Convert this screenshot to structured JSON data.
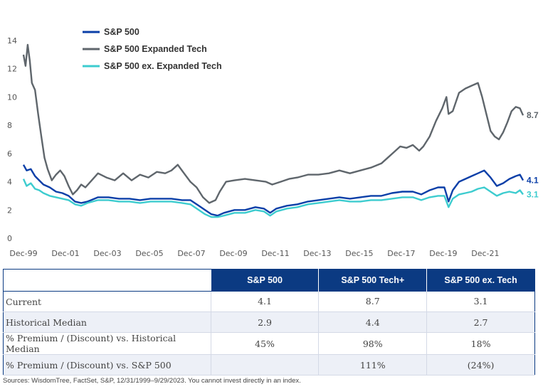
{
  "chart_data": {
    "type": "line",
    "title": "",
    "xlabel": "",
    "ylabel": "",
    "ylim": [
      0,
      14
    ],
    "yticks": [
      0,
      2,
      4,
      6,
      8,
      10,
      12,
      14
    ],
    "x_tick_labels": [
      "Dec-99",
      "Dec-01",
      "Dec-03",
      "Dec-05",
      "Dec-07",
      "Dec-09",
      "Dec-11",
      "Dec-13",
      "Dec-15",
      "Dec-17",
      "Dec-19",
      "Dec-21"
    ],
    "x_tick_years": [
      1999.95,
      2001.95,
      2003.95,
      2005.95,
      2007.95,
      2009.95,
      2011.95,
      2013.95,
      2015.95,
      2017.95,
      2019.95,
      2021.95
    ],
    "xlim": [
      1999.95,
      2023.75
    ],
    "legend": [
      "S&P 500",
      "S&P 500 Expanded Tech",
      "S&P 500 ex. Expanded Tech"
    ],
    "series": [
      {
        "name": "S&P 500",
        "color": "#0b3fa8",
        "end_label": "4.1",
        "x": [
          1999.95,
          2000.1,
          2000.3,
          2000.5,
          2000.7,
          2000.9,
          2001.2,
          2001.5,
          2001.8,
          2002.1,
          2002.4,
          2002.7,
          2003.0,
          2003.5,
          2004.0,
          2004.5,
          2005.0,
          2005.5,
          2006.0,
          2006.5,
          2007.0,
          2007.5,
          2007.9,
          2008.3,
          2008.6,
          2008.9,
          2009.2,
          2009.5,
          2010.0,
          2010.5,
          2011.0,
          2011.4,
          2011.7,
          2012.0,
          2012.5,
          2013.0,
          2013.5,
          2014.0,
          2014.5,
          2015.0,
          2015.5,
          2016.0,
          2016.5,
          2017.0,
          2017.5,
          2018.0,
          2018.5,
          2018.9,
          2019.3,
          2019.7,
          2020.0,
          2020.2,
          2020.4,
          2020.7,
          2021.0,
          2021.3,
          2021.6,
          2021.9,
          2022.2,
          2022.5,
          2022.8,
          2023.1,
          2023.4,
          2023.6,
          2023.75
        ],
        "values": [
          5.2,
          4.8,
          4.9,
          4.4,
          4.1,
          3.8,
          3.6,
          3.3,
          3.2,
          3.0,
          2.6,
          2.5,
          2.6,
          2.9,
          2.9,
          2.8,
          2.8,
          2.7,
          2.8,
          2.8,
          2.8,
          2.7,
          2.7,
          2.3,
          2.0,
          1.7,
          1.6,
          1.8,
          2.0,
          2.0,
          2.2,
          2.1,
          1.8,
          2.1,
          2.3,
          2.4,
          2.6,
          2.7,
          2.8,
          2.9,
          2.8,
          2.9,
          3.0,
          3.0,
          3.2,
          3.3,
          3.3,
          3.1,
          3.4,
          3.6,
          3.6,
          2.6,
          3.4,
          4.0,
          4.2,
          4.4,
          4.6,
          4.8,
          4.3,
          3.7,
          3.9,
          4.2,
          4.4,
          4.5,
          4.1
        ]
      },
      {
        "name": "S&P 500 Expanded Tech",
        "color": "#5f666c",
        "end_label": "8.7",
        "x": [
          1999.95,
          2000.05,
          2000.15,
          2000.25,
          2000.35,
          2000.5,
          2000.65,
          2000.8,
          2000.95,
          2001.1,
          2001.3,
          2001.5,
          2001.7,
          2001.9,
          2002.1,
          2002.3,
          2002.5,
          2002.7,
          2002.9,
          2003.2,
          2003.5,
          2003.9,
          2004.3,
          2004.7,
          2005.1,
          2005.5,
          2005.9,
          2006.3,
          2006.7,
          2007.0,
          2007.3,
          2007.6,
          2007.9,
          2008.2,
          2008.5,
          2008.8,
          2009.1,
          2009.3,
          2009.6,
          2010.0,
          2010.5,
          2011.0,
          2011.5,
          2011.8,
          2012.2,
          2012.6,
          2013.0,
          2013.5,
          2014.0,
          2014.5,
          2015.0,
          2015.5,
          2016.0,
          2016.5,
          2017.0,
          2017.3,
          2017.6,
          2017.9,
          2018.2,
          2018.5,
          2018.8,
          2019.0,
          2019.3,
          2019.6,
          2019.9,
          2020.1,
          2020.2,
          2020.4,
          2020.7,
          2021.0,
          2021.3,
          2021.6,
          2021.8,
          2022.0,
          2022.2,
          2022.4,
          2022.6,
          2022.8,
          2023.0,
          2023.2,
          2023.4,
          2023.6,
          2023.75
        ],
        "values": [
          13.0,
          12.2,
          13.7,
          12.6,
          11.0,
          10.5,
          8.8,
          7.2,
          5.7,
          4.9,
          4.1,
          4.5,
          4.8,
          4.4,
          3.7,
          3.1,
          3.4,
          3.8,
          3.6,
          4.1,
          4.6,
          4.3,
          4.1,
          4.6,
          4.1,
          4.5,
          4.3,
          4.7,
          4.6,
          4.8,
          5.2,
          4.6,
          4.0,
          3.6,
          2.9,
          2.5,
          2.7,
          3.3,
          4.0,
          4.1,
          4.2,
          4.1,
          4.0,
          3.8,
          4.0,
          4.2,
          4.3,
          4.5,
          4.5,
          4.6,
          4.8,
          4.6,
          4.8,
          5.0,
          5.3,
          5.7,
          6.1,
          6.5,
          6.4,
          6.6,
          6.2,
          6.5,
          7.2,
          8.3,
          9.2,
          10.0,
          8.8,
          9.0,
          10.3,
          10.6,
          10.8,
          11.0,
          10.0,
          8.8,
          7.6,
          7.2,
          7.0,
          7.5,
          8.2,
          9.0,
          9.3,
          9.2,
          8.7
        ]
      },
      {
        "name": "S&P 500 ex. Expanded Tech",
        "color": "#3dcccf",
        "end_label": "3.1",
        "x": [
          1999.95,
          2000.1,
          2000.3,
          2000.5,
          2000.7,
          2000.9,
          2001.2,
          2001.5,
          2001.8,
          2002.1,
          2002.4,
          2002.7,
          2003.0,
          2003.5,
          2004.0,
          2004.5,
          2005.0,
          2005.5,
          2006.0,
          2006.5,
          2007.0,
          2007.5,
          2007.9,
          2008.3,
          2008.6,
          2008.9,
          2009.2,
          2009.5,
          2010.0,
          2010.5,
          2011.0,
          2011.4,
          2011.7,
          2012.0,
          2012.5,
          2013.0,
          2013.5,
          2014.0,
          2014.5,
          2015.0,
          2015.5,
          2016.0,
          2016.5,
          2017.0,
          2017.5,
          2018.0,
          2018.5,
          2018.9,
          2019.3,
          2019.7,
          2020.0,
          2020.2,
          2020.4,
          2020.7,
          2021.0,
          2021.3,
          2021.6,
          2021.9,
          2022.2,
          2022.5,
          2022.8,
          2023.1,
          2023.4,
          2023.6,
          2023.75
        ],
        "values": [
          4.2,
          3.7,
          3.9,
          3.5,
          3.4,
          3.2,
          3.0,
          2.9,
          2.8,
          2.7,
          2.4,
          2.3,
          2.5,
          2.7,
          2.7,
          2.6,
          2.6,
          2.5,
          2.6,
          2.6,
          2.6,
          2.5,
          2.4,
          2.0,
          1.7,
          1.5,
          1.5,
          1.6,
          1.8,
          1.8,
          2.0,
          1.9,
          1.6,
          1.9,
          2.1,
          2.2,
          2.4,
          2.5,
          2.6,
          2.7,
          2.6,
          2.6,
          2.7,
          2.7,
          2.8,
          2.9,
          2.9,
          2.7,
          2.9,
          3.0,
          3.0,
          2.2,
          2.8,
          3.1,
          3.2,
          3.3,
          3.5,
          3.6,
          3.3,
          3.0,
          3.2,
          3.3,
          3.2,
          3.4,
          3.1
        ]
      }
    ]
  },
  "table": {
    "headers": [
      "",
      "S&P 500",
      "S&P 500 Tech+",
      "S&P 500 ex. Tech"
    ],
    "rows": [
      {
        "label": "Current",
        "values": [
          "4.1",
          "8.7",
          "3.1"
        ]
      },
      {
        "label": "Historical Median",
        "values": [
          "2.9",
          "4.4",
          "2.7"
        ]
      },
      {
        "label": "% Premium / (Discount) vs. Historical Median",
        "values": [
          "45%",
          "98%",
          "18%"
        ]
      },
      {
        "label": "% Premium / (Discount) vs. S&P 500",
        "values": [
          "",
          "111%",
          "(24%)"
        ]
      }
    ]
  },
  "source": "Sources: WisdomTree, FactSet, S&P, 12/31/1999–9/29/2023. You cannot invest directly in an index."
}
